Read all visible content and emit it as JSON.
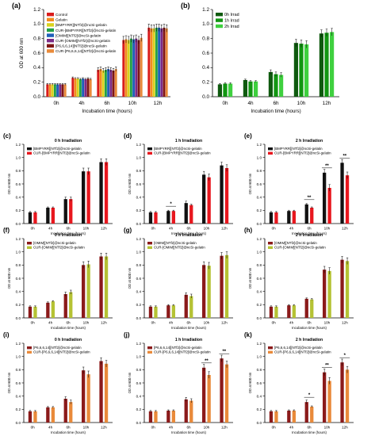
{
  "colors": {
    "control": "#d91c1c",
    "gelatin": "#f28c1e",
    "bmpyrr": "#d8d21e",
    "cur_bmpyrr": "#24a146",
    "omim": "#1f5fb8",
    "cur_omim": "#7a2a86",
    "p666": "#7f1616",
    "cur_p666": "#e98a3a",
    "irr0": "#0f5a0f",
    "irr1": "#129612",
    "irr2": "#3fd03f",
    "black": "#111111",
    "red": "#e8171e",
    "maroon": "#8b1a1a",
    "olive": "#b5c234"
  },
  "chart_data": [
    {
      "id": "a",
      "panel_label": "(a)",
      "type": "bar",
      "title": "",
      "xlabel": "Incubation time (hours)",
      "ylabel": "OD at 600 nm",
      "categories": [
        "0h",
        "4h",
        "6h",
        "10h",
        "12h"
      ],
      "ylim": [
        0,
        1.2
      ],
      "yticks": [
        "0.0",
        "0.2",
        "0.4",
        "0.6",
        "0.8",
        "1.0",
        "1.2"
      ],
      "legend_position": "top-left",
      "series": [
        {
          "name": "Control",
          "color_key": "control",
          "values": [
            0.17,
            0.26,
            0.37,
            0.78,
            0.95
          ]
        },
        {
          "name": "Gelatin",
          "color_key": "gelatin",
          "values": [
            0.17,
            0.25,
            0.38,
            0.79,
            0.94
          ]
        },
        {
          "name": "[BMPYRR][NTf2]@ncSi-gelatin",
          "color_key": "bmpyrr",
          "values": [
            0.17,
            0.25,
            0.36,
            0.78,
            0.94
          ]
        },
        {
          "name": "CUR-[BMPYRR][NTf2]@ncSi-gelatin",
          "color_key": "cur_bmpyrr",
          "values": [
            0.17,
            0.24,
            0.37,
            0.8,
            0.95
          ]
        },
        {
          "name": "[OMIM][NTf2]@ncSi-gelatin",
          "color_key": "omim",
          "values": [
            0.17,
            0.25,
            0.38,
            0.79,
            0.95
          ]
        },
        {
          "name": "CUR-[OMIM][NTf2]@ncSi-gelatin",
          "color_key": "cur_omim",
          "values": [
            0.17,
            0.24,
            0.37,
            0.8,
            0.94
          ]
        },
        {
          "name": "[P6,6,6,14][NTf2]@ncSi-gelatin",
          "color_key": "p666",
          "values": [
            0.17,
            0.25,
            0.36,
            0.78,
            0.95
          ]
        },
        {
          "name": "CUR-[P6,6,6,14][NTf2]@ncSi-gelatin",
          "color_key": "cur_p666",
          "values": [
            0.17,
            0.24,
            0.38,
            0.81,
            0.94
          ]
        }
      ],
      "annotations": []
    },
    {
      "id": "b",
      "panel_label": "(b)",
      "type": "bar",
      "title": "",
      "xlabel": "Incubation time (hours)",
      "ylabel": "",
      "categories": [
        "0h",
        "4h",
        "6h",
        "10h",
        "12h"
      ],
      "ylim": [
        0,
        1.2
      ],
      "yticks": [
        "0.0",
        "0.2",
        "0.4",
        "0.6",
        "0.8",
        "1.0",
        "1.2"
      ],
      "legend_position": "top-left",
      "series": [
        {
          "name": "0h Irrad",
          "color_key": "irr0",
          "values": [
            0.17,
            0.23,
            0.34,
            0.74,
            0.87
          ]
        },
        {
          "name": "1h Irrad",
          "color_key": "irr1",
          "values": [
            0.18,
            0.21,
            0.31,
            0.73,
            0.88
          ]
        },
        {
          "name": "2h Irrad",
          "color_key": "irr2",
          "values": [
            0.18,
            0.21,
            0.3,
            0.72,
            0.89
          ]
        }
      ],
      "annotations": []
    },
    {
      "id": "c",
      "panel_label": "(c)",
      "type": "bar",
      "title": "0 h Irradiation",
      "xlabel": "Incubation time (hours)",
      "ylabel": "OD at 600 nm",
      "categories": [
        "0h",
        "4h",
        "6h",
        "10h",
        "12h"
      ],
      "ylim": [
        0,
        1.2
      ],
      "yticks": [
        "0.0",
        "0.2",
        "0.4",
        "0.6",
        "0.8",
        "1.0",
        "1.2"
      ],
      "legend_position": "top-left",
      "series": [
        {
          "name": "[BMPYRR][NTf2]@ncSi-gelatin",
          "color_key": "black",
          "values": [
            0.17,
            0.24,
            0.37,
            0.79,
            0.93
          ]
        },
        {
          "name": "CUR-[BMPYRR][NTf2]@ncSi-gelatin",
          "color_key": "red",
          "values": [
            0.17,
            0.24,
            0.37,
            0.79,
            0.93
          ]
        }
      ],
      "annotations": []
    },
    {
      "id": "d",
      "panel_label": "(d)",
      "type": "bar",
      "title": "1 h Irradiation",
      "xlabel": "Incubation time (hours)",
      "ylabel": "OD at 600 nm",
      "categories": [
        "0h",
        "4h",
        "6h",
        "10h",
        "12h"
      ],
      "ylim": [
        0,
        1.2
      ],
      "yticks": [
        "0.0",
        "0.2",
        "0.4",
        "0.6",
        "0.8",
        "1.0",
        "1.2"
      ],
      "legend_position": "top-left",
      "series": [
        {
          "name": "[BMPYRR][NTf2]@ncSi-gelatin",
          "color_key": "black",
          "values": [
            0.17,
            0.19,
            0.31,
            0.74,
            0.88
          ]
        },
        {
          "name": "CUR-[BMPYRR][NTf2]@ncSi-gelatin",
          "color_key": "red",
          "values": [
            0.17,
            0.19,
            0.28,
            0.7,
            0.84
          ]
        }
      ],
      "annotations": [
        {
          "category_index": 1,
          "text": "*"
        }
      ]
    },
    {
      "id": "e",
      "panel_label": "(e)",
      "type": "bar",
      "title": "2 h Irradiation",
      "xlabel": "Incubation time (hours)",
      "ylabel": "OD at 600 nm",
      "categories": [
        "0h",
        "4h",
        "6h",
        "10h",
        "12h"
      ],
      "ylim": [
        0,
        1.2
      ],
      "yticks": [
        "0.0",
        "0.2",
        "0.4",
        "0.6",
        "0.8",
        "1.0",
        "1.2"
      ],
      "legend_position": "top-left",
      "series": [
        {
          "name": "[BMPYRR][NTf2]@ncSi-gelatin",
          "color_key": "black",
          "values": [
            0.17,
            0.19,
            0.29,
            0.77,
            0.92
          ]
        },
        {
          "name": "CUR-[BMPYRR][NTf2]@ncSi-gelatin",
          "color_key": "red",
          "values": [
            0.17,
            0.19,
            0.24,
            0.54,
            0.73
          ]
        }
      ],
      "annotations": [
        {
          "category_index": 2,
          "text": "**"
        },
        {
          "category_index": 3,
          "text": "**"
        },
        {
          "category_index": 4,
          "text": "**"
        }
      ]
    },
    {
      "id": "f",
      "panel_label": "(f)",
      "type": "bar",
      "title": "0 h Irradiation",
      "xlabel": "Incubation time (hours)",
      "ylabel": "OD at 600 nm",
      "categories": [
        "0h",
        "4h",
        "6h",
        "10h",
        "12h"
      ],
      "ylim": [
        0,
        1.2
      ],
      "yticks": [
        "0.0",
        "0.2",
        "0.4",
        "0.6",
        "0.8",
        "1.0",
        "1.2"
      ],
      "legend_position": "top-left",
      "series": [
        {
          "name": "[OMIM][NTf2]@ncSi-gelatin",
          "color_key": "maroon",
          "values": [
            0.17,
            0.23,
            0.36,
            0.8,
            0.93
          ]
        },
        {
          "name": "CUR-[OMIM][NTf2]@ncSi-gelatin",
          "color_key": "olive",
          "values": [
            0.17,
            0.25,
            0.39,
            0.81,
            0.93
          ]
        }
      ],
      "annotations": []
    },
    {
      "id": "g",
      "panel_label": "(g)",
      "type": "bar",
      "title": "1 h Irradiation",
      "xlabel": "Incubation time (hours)",
      "ylabel": "OD at 600 nm",
      "categories": [
        "0h",
        "4h",
        "6h",
        "10h",
        "12h"
      ],
      "ylim": [
        0,
        1.2
      ],
      "yticks": [
        "0.0",
        "0.2",
        "0.4",
        "0.6",
        "0.8",
        "1.0",
        "1.2"
      ],
      "legend_position": "top-left",
      "series": [
        {
          "name": "[OMIM][NTf2]@ncSi-gelatin",
          "color_key": "maroon",
          "values": [
            0.17,
            0.19,
            0.35,
            0.8,
            0.94
          ]
        },
        {
          "name": "CUR-[OMIM][NTf2]@ncSi-gelatin",
          "color_key": "olive",
          "values": [
            0.17,
            0.19,
            0.33,
            0.79,
            0.95
          ]
        }
      ],
      "annotations": []
    },
    {
      "id": "h",
      "panel_label": "(h)",
      "type": "bar",
      "title": "2 h Irradiation",
      "xlabel": "Incubation time (hours)",
      "ylabel": "OD at 600 nm",
      "categories": [
        "0h",
        "4h",
        "6h",
        "10h",
        "12h"
      ],
      "ylim": [
        0,
        1.2
      ],
      "yticks": [
        "0.0",
        "0.2",
        "0.4",
        "0.6",
        "0.8",
        "1.0",
        "1.2"
      ],
      "legend_position": "top-left",
      "series": [
        {
          "name": "[OMIM][NTf2]@ncSi-gelatin",
          "color_key": "maroon",
          "values": [
            0.17,
            0.19,
            0.29,
            0.73,
            0.88
          ]
        },
        {
          "name": "CUR-[OMIM][NTf2]@ncSi-gelatin",
          "color_key": "olive",
          "values": [
            0.17,
            0.19,
            0.28,
            0.71,
            0.86
          ]
        }
      ],
      "annotations": []
    },
    {
      "id": "i",
      "panel_label": "(i)",
      "type": "bar",
      "title": "0 h Irradiation",
      "xlabel": "Incubation time (hours)",
      "ylabel": "OD at 600 nm",
      "categories": [
        "0h",
        "4h",
        "6h",
        "10h",
        "12h"
      ],
      "ylim": [
        0,
        1.2
      ],
      "yticks": [
        "0.0",
        "0.2",
        "0.4",
        "0.6",
        "0.8",
        "1.0",
        "1.2"
      ],
      "legend_position": "top-left",
      "series": [
        {
          "name": "[P6,6,6,14][NTf2]@ncSi-gelatin",
          "color_key": "maroon",
          "values": [
            0.17,
            0.23,
            0.36,
            0.79,
            0.93
          ]
        },
        {
          "name": "CUR-[P6,6,6,14][NTf2]@ncSi-gelatin",
          "color_key": "cur_p666",
          "values": [
            0.17,
            0.23,
            0.31,
            0.73,
            0.89
          ]
        }
      ],
      "annotations": []
    },
    {
      "id": "j",
      "panel_label": "(j)",
      "type": "bar",
      "title": "1 h Irradiation",
      "xlabel": "Incubation time (hours)",
      "ylabel": "OD at 600 nm",
      "categories": [
        "0h",
        "4h",
        "6h",
        "10h",
        "12h"
      ],
      "ylim": [
        0,
        1.2
      ],
      "yticks": [
        "0.0",
        "0.2",
        "0.4",
        "0.6",
        "0.8",
        "1.0",
        "1.2"
      ],
      "legend_position": "top-left",
      "series": [
        {
          "name": "[P6,6,6,14][NTf2]@ncSi-gelatin",
          "color_key": "maroon",
          "values": [
            0.17,
            0.18,
            0.35,
            0.83,
            0.97
          ]
        },
        {
          "name": "CUR-[P6,6,6,14][NTf2]@ncSi-gelatin",
          "color_key": "cur_p666",
          "values": [
            0.17,
            0.18,
            0.33,
            0.72,
            0.88
          ]
        }
      ],
      "annotations": [
        {
          "category_index": 3,
          "text": "**"
        },
        {
          "category_index": 4,
          "text": "**"
        }
      ]
    },
    {
      "id": "k",
      "panel_label": "(k)",
      "type": "bar",
      "title": "2 h Irradiation",
      "xlabel": "Incubation time (hours)",
      "ylabel": "OD at 600 nm",
      "categories": [
        "0h",
        "4h",
        "6h",
        "10h",
        "12h"
      ],
      "ylim": [
        0,
        1.2
      ],
      "yticks": [
        "0.0",
        "0.2",
        "0.4",
        "0.6",
        "0.8",
        "1.0",
        "1.2"
      ],
      "legend_position": "top-left",
      "series": [
        {
          "name": "[P6,6,6,14][NTf2]@ncSi-gelatin",
          "color_key": "maroon",
          "values": [
            0.17,
            0.18,
            0.31,
            0.76,
            0.91
          ]
        },
        {
          "name": "CUR-[P6,6,6,14][NTf2]@ncSi-gelatin",
          "color_key": "cur_p666",
          "values": [
            0.17,
            0.18,
            0.24,
            0.63,
            0.8
          ]
        }
      ],
      "annotations": [
        {
          "category_index": 2,
          "text": "*"
        },
        {
          "category_index": 3,
          "text": "**"
        },
        {
          "category_index": 4,
          "text": "*"
        }
      ]
    }
  ]
}
